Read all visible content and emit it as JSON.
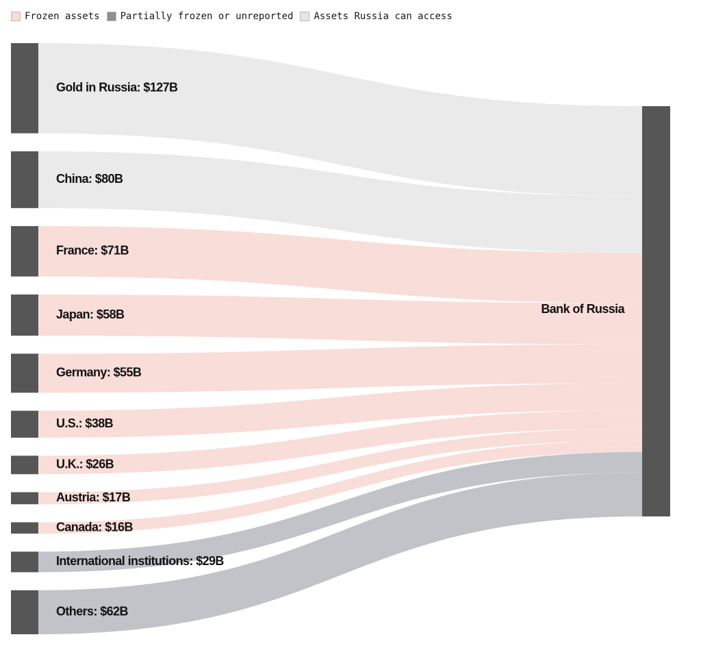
{
  "legend": [
    {
      "label": "Frozen assets",
      "color": "#f8dcd6",
      "category": "frozen"
    },
    {
      "label": "Partially frozen or unreported",
      "color": "#8d9097",
      "category": "partial"
    },
    {
      "label": "Assets Russia can access",
      "color": "#e6e6e6",
      "category": "access"
    }
  ],
  "chart_data": {
    "type": "sankey",
    "unit": "$B",
    "target": {
      "name": "Bank of Russia",
      "label": "Bank of Russia"
    },
    "category_colors": {
      "access": "#eaeaea",
      "frozen": "#f9ddd8",
      "partial": "#c1c3c9",
      "node": "#565656"
    },
    "flows": [
      {
        "source": "Gold in Russia",
        "label": "Gold in Russia: $127B",
        "value": 127,
        "category": "access"
      },
      {
        "source": "China",
        "label": "China: $80B",
        "value": 80,
        "category": "access"
      },
      {
        "source": "France",
        "label": "France: $71B",
        "value": 71,
        "category": "frozen"
      },
      {
        "source": "Japan",
        "label": "Japan: $58B",
        "value": 58,
        "category": "frozen"
      },
      {
        "source": "Germany",
        "label": "Germany: $55B",
        "value": 55,
        "category": "frozen"
      },
      {
        "source": "U.S.",
        "label": "U.S.: $38B",
        "value": 38,
        "category": "frozen"
      },
      {
        "source": "U.K.",
        "label": "U.K.: $26B",
        "value": 26,
        "category": "frozen"
      },
      {
        "source": "Austria",
        "label": "Austria: $17B",
        "value": 17,
        "category": "frozen"
      },
      {
        "source": "Canada",
        "label": "Canada: $16B",
        "value": 16,
        "category": "frozen"
      },
      {
        "source": "International institutions",
        "label": "International institutions: $29B",
        "value": 29,
        "category": "partial"
      },
      {
        "source": "Others",
        "label": "Others: $62B",
        "value": 62,
        "category": "partial"
      }
    ]
  }
}
